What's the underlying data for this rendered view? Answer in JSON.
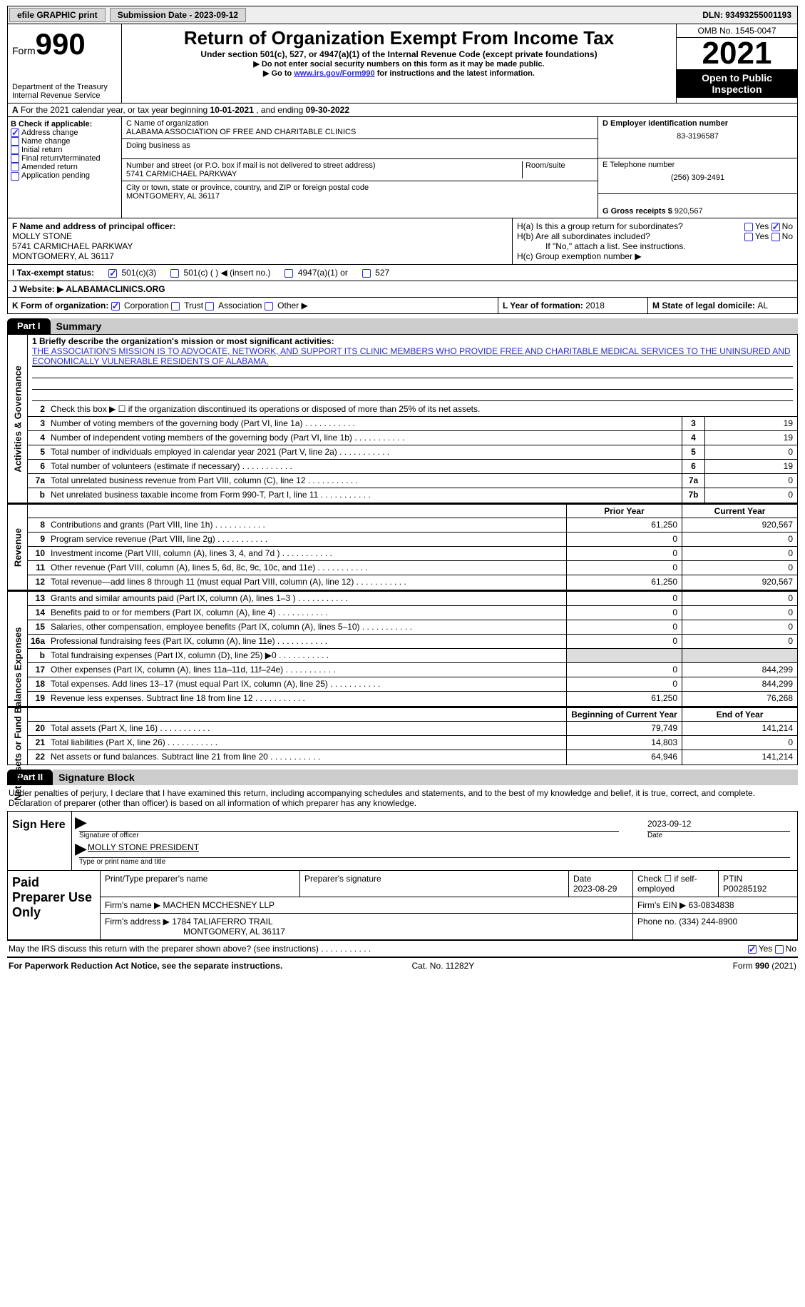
{
  "topbar": {
    "efile": "efile GRAPHIC print",
    "submission_label": "Submission Date - 2023-09-12",
    "dln_label": "DLN: 93493255001193"
  },
  "header": {
    "form_word": "Form",
    "form_num": "990",
    "dept": "Department of the Treasury",
    "irs": "Internal Revenue Service",
    "title": "Return of Organization Exempt From Income Tax",
    "sub1": "Under section 501(c), 527, or 4947(a)(1) of the Internal Revenue Code (except private foundations)",
    "sub2": "▶ Do not enter social security numbers on this form as it may be made public.",
    "sub3_pre": "▶ Go to ",
    "sub3_link": "www.irs.gov/Form990",
    "sub3_post": " for instructions and the latest information.",
    "omb": "OMB No. 1545-0047",
    "year": "2021",
    "open": "Open to Public Inspection"
  },
  "row_a": {
    "label": "A",
    "text": " For the 2021 calendar year, or tax year beginning ",
    "begin": "10-01-2021",
    "mid": "  , and ending ",
    "end": "09-30-2022"
  },
  "col_b": {
    "label": "B Check if applicable:",
    "items": [
      "Address change",
      "Name change",
      "Initial return",
      "Final return/terminated",
      "Amended return",
      "Application pending"
    ],
    "checked_index": 0
  },
  "col_c": {
    "name_label": "C Name of organization",
    "name": "ALABAMA ASSOCIATION OF FREE AND CHARITABLE CLINICS",
    "dba_label": "Doing business as",
    "addr_label": "Number and street (or P.O. box if mail is not delivered to street address)",
    "room_label": "Room/suite",
    "addr": "5741 CARMICHAEL PARKWAY",
    "city_label": "City or town, state or province, country, and ZIP or foreign postal code",
    "city": "MONTGOMERY, AL  36117"
  },
  "col_de": {
    "ein_label": "D Employer identification number",
    "ein": "83-3196587",
    "phone_label": "E Telephone number",
    "phone": "(256) 309-2491",
    "gross_label": "G Gross receipts $ ",
    "gross": "920,567"
  },
  "row_f": {
    "label": "F  Name and address of principal officer:",
    "name": "MOLLY STONE",
    "addr1": "5741 CARMICHAEL PARKWAY",
    "addr2": "MONTGOMERY, AL  36117"
  },
  "row_h": {
    "a": "H(a)  Is this a group return for subordinates?",
    "b": "H(b)  Are all subordinates included?",
    "b_note": "If \"No,\" attach a list. See instructions.",
    "c": "H(c)  Group exemption number ▶",
    "yes": "Yes",
    "no": "No"
  },
  "row_i": {
    "label": "I    Tax-exempt status:",
    "opts": [
      "501(c)(3)",
      "501(c) (  ) ◀ (insert no.)",
      "4947(a)(1) or",
      "527"
    ]
  },
  "row_j": {
    "label": "J   Website: ▶ ",
    "val": "ALABAMACLINICS.ORG"
  },
  "row_k": {
    "k": "K Form of organization:",
    "opts": [
      "Corporation",
      "Trust",
      "Association",
      "Other ▶"
    ],
    "l_label": "L Year of formation: ",
    "l_val": "2018",
    "m_label": "M State of legal domicile: ",
    "m_val": "AL"
  },
  "parts": {
    "p1": "Part I",
    "p1t": "Summary",
    "p2": "Part II",
    "p2t": "Signature Block"
  },
  "summary": {
    "vtabs": [
      "Activities & Governance",
      "Revenue",
      "Expenses",
      "Net Assets or Fund Balances"
    ],
    "q1": "1   Briefly describe the organization's mission or most significant activities:",
    "mission": "THE ASSOCIATION'S MISSION IS TO ADVOCATE, NETWORK, AND SUPPORT ITS CLINIC MEMBERS WHO PROVIDE FREE AND CHARITABLE MEDICAL SERVICES TO THE UNINSURED AND ECONOMICALLY VULNERABLE RESIDENTS OF ALABAMA.",
    "q2": "Check this box ▶ ☐  if the organization discontinued its operations or disposed of more than 25% of its net assets.",
    "prior": "Prior Year",
    "current": "Current Year",
    "begin": "Beginning of Current Year",
    "endy": "End of Year",
    "rows_ag": [
      {
        "n": "3",
        "label": "Number of voting members of the governing body (Part VI, line 1a)",
        "box": "3",
        "val": "19"
      },
      {
        "n": "4",
        "label": "Number of independent voting members of the governing body (Part VI, line 1b)",
        "box": "4",
        "val": "19"
      },
      {
        "n": "5",
        "label": "Total number of individuals employed in calendar year 2021 (Part V, line 2a)",
        "box": "5",
        "val": "0"
      },
      {
        "n": "6",
        "label": "Total number of volunteers (estimate if necessary)",
        "box": "6",
        "val": "19"
      },
      {
        "n": "7a",
        "label": "Total unrelated business revenue from Part VIII, column (C), line 12",
        "box": "7a",
        "val": "0"
      },
      {
        "n": "b",
        "label": "Net unrelated business taxable income from Form 990-T, Part I, line 11",
        "box": "7b",
        "val": "0"
      }
    ],
    "rows_rev": [
      {
        "n": "8",
        "label": "Contributions and grants (Part VIII, line 1h)",
        "py": "61,250",
        "cy": "920,567"
      },
      {
        "n": "9",
        "label": "Program service revenue (Part VIII, line 2g)",
        "py": "0",
        "cy": "0"
      },
      {
        "n": "10",
        "label": "Investment income (Part VIII, column (A), lines 3, 4, and 7d )",
        "py": "0",
        "cy": "0"
      },
      {
        "n": "11",
        "label": "Other revenue (Part VIII, column (A), lines 5, 6d, 8c, 9c, 10c, and 11e)",
        "py": "0",
        "cy": "0"
      },
      {
        "n": "12",
        "label": "Total revenue—add lines 8 through 11 (must equal Part VIII, column (A), line 12)",
        "py": "61,250",
        "cy": "920,567"
      }
    ],
    "rows_exp": [
      {
        "n": "13",
        "label": "Grants and similar amounts paid (Part IX, column (A), lines 1–3 )",
        "py": "0",
        "cy": "0"
      },
      {
        "n": "14",
        "label": "Benefits paid to or for members (Part IX, column (A), line 4)",
        "py": "0",
        "cy": "0"
      },
      {
        "n": "15",
        "label": "Salaries, other compensation, employee benefits (Part IX, column (A), lines 5–10)",
        "py": "0",
        "cy": "0"
      },
      {
        "n": "16a",
        "label": "Professional fundraising fees (Part IX, column (A), line 11e)",
        "py": "0",
        "cy": "0"
      },
      {
        "n": "b",
        "label": "Total fundraising expenses (Part IX, column (D), line 25) ▶0",
        "py": "",
        "cy": "",
        "shade": true
      },
      {
        "n": "17",
        "label": "Other expenses (Part IX, column (A), lines 11a–11d, 11f–24e)",
        "py": "0",
        "cy": "844,299"
      },
      {
        "n": "18",
        "label": "Total expenses. Add lines 13–17 (must equal Part IX, column (A), line 25)",
        "py": "0",
        "cy": "844,299"
      },
      {
        "n": "19",
        "label": "Revenue less expenses. Subtract line 18 from line 12",
        "py": "61,250",
        "cy": "76,268"
      }
    ],
    "rows_net": [
      {
        "n": "20",
        "label": "Total assets (Part X, line 16)",
        "py": "79,749",
        "cy": "141,214"
      },
      {
        "n": "21",
        "label": "Total liabilities (Part X, line 26)",
        "py": "14,803",
        "cy": "0"
      },
      {
        "n": "22",
        "label": "Net assets or fund balances. Subtract line 21 from line 20",
        "py": "64,946",
        "cy": "141,214"
      }
    ]
  },
  "sig": {
    "intro": "Under penalties of perjury, I declare that I have examined this return, including accompanying schedules and statements, and to the best of my knowledge and belief, it is true, correct, and complete. Declaration of preparer (other than officer) is based on all information of which preparer has any knowledge.",
    "sign_here": "Sign Here",
    "sig_officer": "Signature of officer",
    "date": "2023-09-12",
    "date_lbl": "Date",
    "name": "MOLLY STONE  PRESIDENT",
    "name_lbl": "Type or print name and title"
  },
  "paid": {
    "title": "Paid Preparer Use Only",
    "h1": "Print/Type preparer's name",
    "h2": "Preparer's signature",
    "h3": "Date",
    "h3v": "2023-08-29",
    "h4": "Check ☐ if self-employed",
    "h5": "PTIN",
    "ptin": "P00285192",
    "firm_lbl": "Firm's name    ▶ ",
    "firm": "MACHEN MCCHESNEY LLP",
    "ein_lbl": "Firm's EIN ▶ ",
    "ein": "63-0834838",
    "addr_lbl": "Firm's address ▶ ",
    "addr1": "1784 TALIAFERRO TRAIL",
    "addr2": "MONTGOMERY, AL  36117",
    "phone_lbl": "Phone no. ",
    "phone": "(334) 244-8900"
  },
  "footer": {
    "q": "May the IRS discuss this return with the preparer shown above? (see instructions)",
    "yes": "Yes",
    "no": "No",
    "notice": "For Paperwork Reduction Act Notice, see the separate instructions.",
    "cat": "Cat. No. 11282Y",
    "form": "Form 990 (2021)"
  }
}
